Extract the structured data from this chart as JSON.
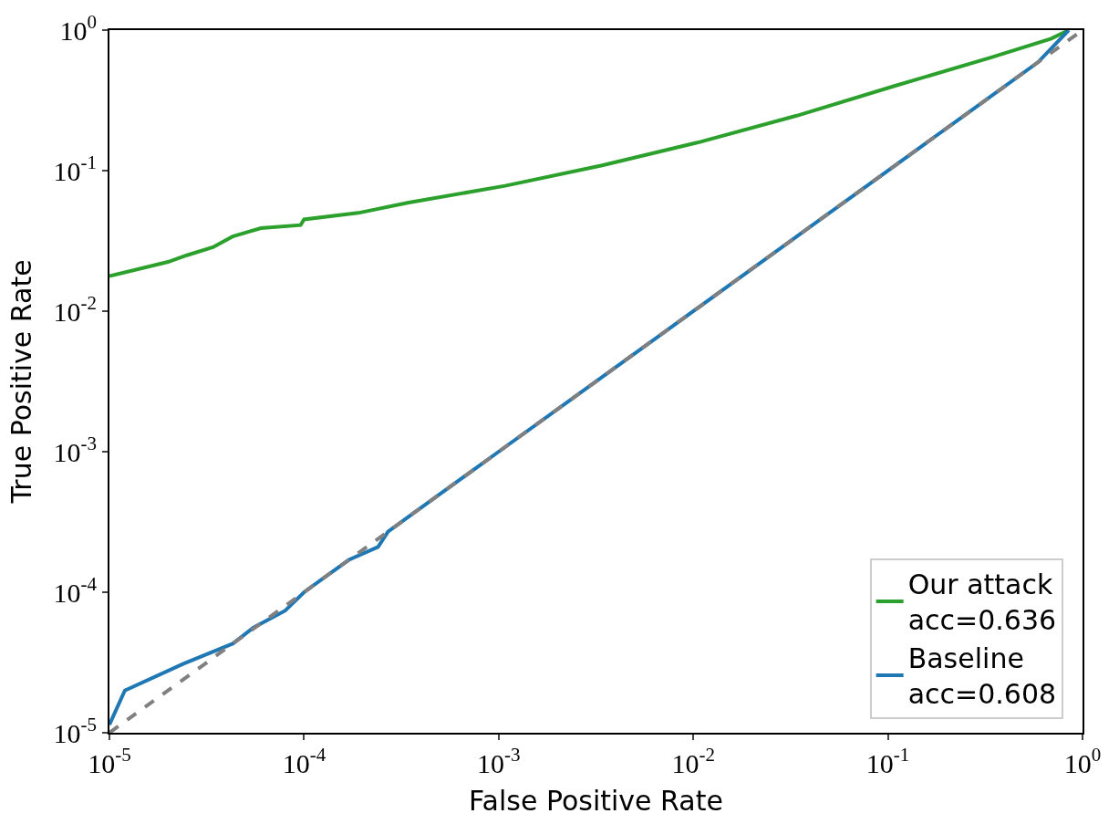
{
  "chart_data": {
    "type": "line",
    "xlabel": "False Positive Rate",
    "ylabel": "True Positive Rate",
    "log": "xy",
    "xlim": [
      1e-05,
      1
    ],
    "ylim": [
      1e-05,
      1
    ],
    "xticks": [
      {
        "value": 1e-05,
        "label": "10$^{-5}$"
      },
      {
        "value": 0.0001,
        "label": "10$^{-4}$"
      },
      {
        "value": 0.001,
        "label": "10$^{-3}$"
      },
      {
        "value": 0.01,
        "label": "10$^{-2}$"
      },
      {
        "value": 0.1,
        "label": "10$^{-1}$"
      },
      {
        "value": 1,
        "label": "10$^{0}$"
      }
    ],
    "yticks": [
      {
        "value": 1e-05,
        "label": "10$^{-5}$"
      },
      {
        "value": 0.0001,
        "label": "10$^{-4}$"
      },
      {
        "value": 0.001,
        "label": "10$^{-3}$"
      },
      {
        "value": 0.01,
        "label": "10$^{-2}$"
      },
      {
        "value": 0.1,
        "label": "10$^{-1}$"
      },
      {
        "value": 1,
        "label": "10$^{0}$"
      }
    ],
    "legend": "bottom right",
    "series": [
      {
        "name": "Our attack\nacc=0.636",
        "color": "#2ca02c",
        "x": [
          1e-05,
          2e-05,
          2.5e-05,
          3.4e-05,
          4.3e-05,
          6e-05,
          9.6e-05,
          0.0001,
          0.00019,
          0.00034,
          0.00108,
          0.0034,
          0.0108,
          0.034,
          0.108,
          0.34,
          0.69,
          0.85
        ],
        "values": [
          0.0178,
          0.0224,
          0.025,
          0.0285,
          0.034,
          0.039,
          0.041,
          0.045,
          0.05,
          0.059,
          0.078,
          0.109,
          0.16,
          0.246,
          0.4,
          0.64,
          0.87,
          1
        ]
      },
      {
        "name": "Baseline\nacc=0.608",
        "color": "#1f77b4",
        "x": [
          1e-05,
          1.2e-05,
          2.4e-05,
          4.3e-05,
          5.5e-05,
          8e-05,
          0.0001,
          0.00013,
          0.00017,
          0.00024,
          0.00027,
          0.00033,
          0.00046,
          0.001,
          0.0026,
          0.0068,
          0.022,
          0.069,
          0.235,
          0.59,
          0.85
        ],
        "values": [
          1.14e-05,
          2e-05,
          3.1e-05,
          4.3e-05,
          5.6e-05,
          7.4e-05,
          0.0001,
          0.00013,
          0.00017,
          0.00021,
          0.00027,
          0.00033,
          0.00046,
          0.001,
          0.0026,
          0.0068,
          0.022,
          0.069,
          0.235,
          0.59,
          1
        ]
      },
      {
        "type": "line",
        "color": "#808080",
        "line_style": "dashed",
        "x": [
          1e-05,
          1
        ],
        "values": [
          1e-05,
          1
        ]
      }
    ]
  }
}
